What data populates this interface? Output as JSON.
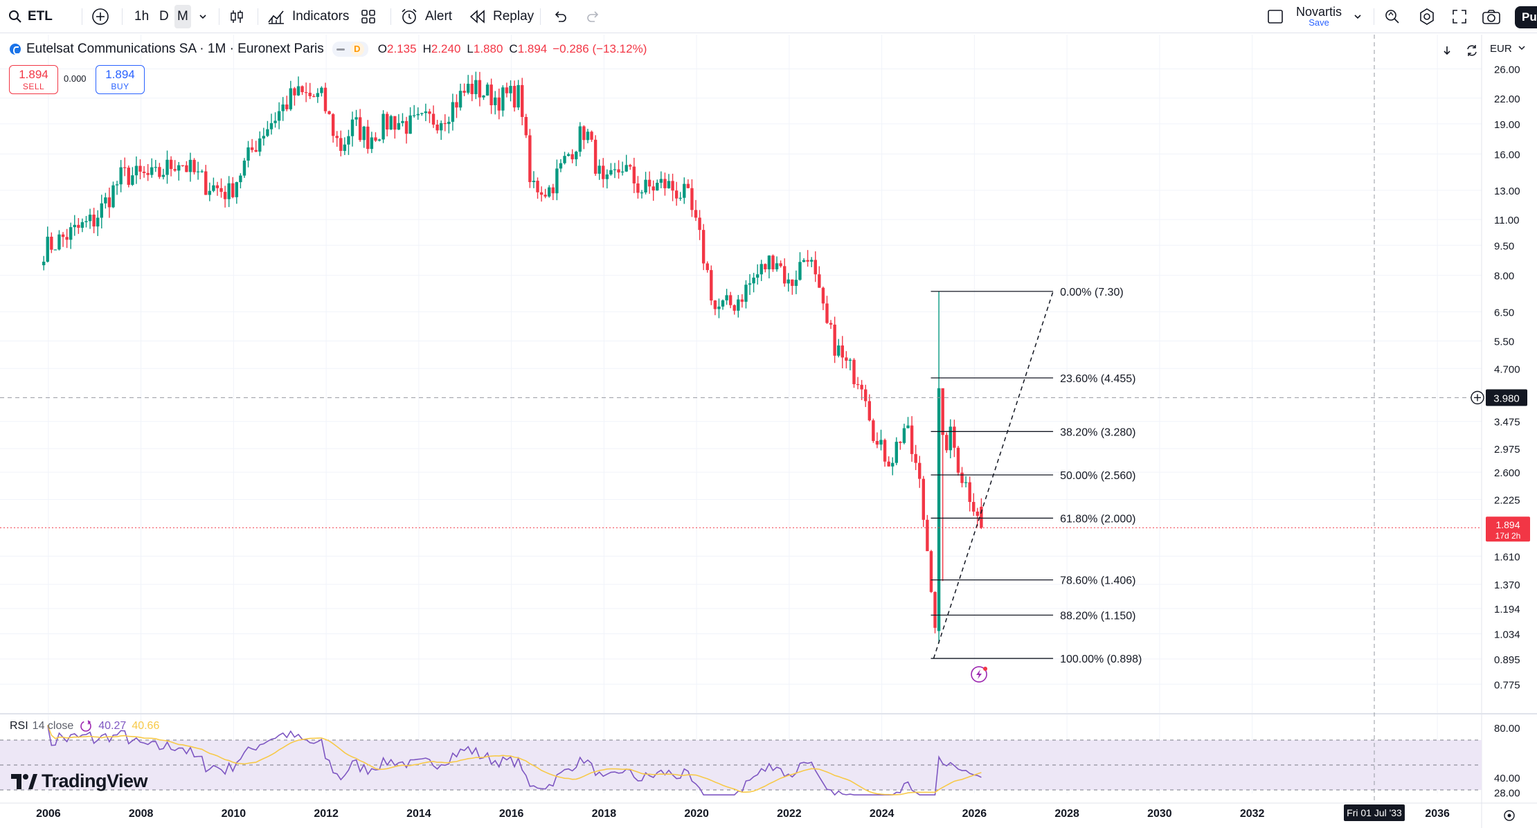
{
  "toolbar": {
    "symbol": "ETL",
    "timeframes": [
      "1h",
      "D",
      "M"
    ],
    "active_timeframe": "M",
    "indicators_label": "Indicators",
    "alert_label": "Alert",
    "replay_label": "Replay",
    "layout_name": "Novartis",
    "layout_save": "Save",
    "publish_label": "Pu"
  },
  "legend": {
    "title": "Eutelsat Communications SA · 1M · Euronext Paris",
    "badge": "D",
    "ohlc": [
      {
        "k": "O",
        "v": "2.135"
      },
      {
        "k": "H",
        "v": "2.240"
      },
      {
        "k": "L",
        "v": "1.880"
      },
      {
        "k": "C",
        "v": "1.894"
      }
    ],
    "change": "−0.286 (−13.12%)"
  },
  "trade": {
    "sell_price": "1.894",
    "sell_label": "SELL",
    "spread": "0.000",
    "buy_price": "1.894",
    "buy_label": "BUY"
  },
  "currency": "EUR",
  "rsi": {
    "name": "RSI",
    "params": "14 close",
    "value": "40.27",
    "ma_value": "40.66",
    "scale_labels": [
      "80.00",
      "40.00",
      "28.00"
    ],
    "levels": [
      70,
      50,
      30
    ]
  },
  "brand": "TradingView",
  "crosshair": {
    "price_label": "3.980",
    "date_label": "Fri 01 Jul '33"
  },
  "last_price": {
    "price": "1.894",
    "countdown": "17d 2h"
  },
  "colors": {
    "up": "#089981",
    "down": "#f23645",
    "rsi_line": "#7e57c2",
    "rsi_ma": "#f7c948",
    "rsi_band": "#ede7f6",
    "fib_line": "#131722"
  },
  "chart_data": {
    "type": "candlestick",
    "symbol": "Eutelsat Communications SA",
    "interval": "1M",
    "exchange": "Euronext Paris",
    "y_scale": "log",
    "x_range": [
      2005.0,
      2037.0
    ],
    "y_range": [
      0.74,
      27.0
    ],
    "x_tick_labels": [
      "2006",
      "2008",
      "2010",
      "2012",
      "2014",
      "2016",
      "2018",
      "2020",
      "2022",
      "2024",
      "2026",
      "2028",
      "2030",
      "2032",
      "2036"
    ],
    "y_tick_labels": [
      "26.00",
      "22.00",
      "19.00",
      "16.00",
      "13.00",
      "11.00",
      "9.50",
      "8.00",
      "6.50",
      "5.50",
      "4.700",
      "3.475",
      "2.975",
      "2.600",
      "2.225",
      "1.610",
      "1.370",
      "1.194",
      "1.034",
      "0.895",
      "0.775"
    ],
    "close_anchors": [
      [
        2005.9,
        9.3
      ],
      [
        2006.5,
        10.2
      ],
      [
        2007.0,
        11.0
      ],
      [
        2007.6,
        14.2
      ],
      [
        2008.3,
        14.0
      ],
      [
        2008.8,
        15.5
      ],
      [
        2009.4,
        13.5
      ],
      [
        2009.9,
        12.8
      ],
      [
        2010.6,
        18.0
      ],
      [
        2011.3,
        22.5
      ],
      [
        2011.9,
        22.0
      ],
      [
        2012.3,
        16.5
      ],
      [
        2012.6,
        19.0
      ],
      [
        2012.9,
        17.5
      ],
      [
        2013.4,
        19.5
      ],
      [
        2013.8,
        18.8
      ],
      [
        2014.5,
        19.8
      ],
      [
        2015.1,
        23.5
      ],
      [
        2015.7,
        22.0
      ],
      [
        2016.2,
        22.5
      ],
      [
        2016.4,
        13.5
      ],
      [
        2016.8,
        13.0
      ],
      [
        2017.3,
        16.5
      ],
      [
        2017.6,
        18.5
      ],
      [
        2018.0,
        13.0
      ],
      [
        2018.4,
        15.0
      ],
      [
        2018.8,
        13.0
      ],
      [
        2019.3,
        13.5
      ],
      [
        2019.8,
        12.5
      ],
      [
        2020.1,
        9.5
      ],
      [
        2020.4,
        6.6
      ],
      [
        2020.8,
        6.8
      ],
      [
        2021.3,
        8.0
      ],
      [
        2021.7,
        9.0
      ],
      [
        2022.0,
        7.5
      ],
      [
        2022.4,
        9.2
      ],
      [
        2022.8,
        6.0
      ],
      [
        2023.2,
        4.8
      ],
      [
        2023.6,
        4.4
      ],
      [
        2023.9,
        3.0
      ],
      [
        2024.2,
        2.8
      ],
      [
        2024.5,
        3.4
      ],
      [
        2024.8,
        2.5
      ],
      [
        2025.1,
        1.3
      ],
      [
        2025.2,
        0.95
      ],
      [
        2025.3,
        3.0
      ],
      [
        2025.5,
        3.2
      ],
      [
        2025.7,
        2.6
      ],
      [
        2025.9,
        2.3
      ],
      [
        2026.05,
        2.135
      ],
      [
        2026.15,
        1.894
      ]
    ],
    "spike_candles": [
      {
        "t": 2025.25,
        "o": 1.05,
        "h": 7.3,
        "l": 0.98,
        "c": 4.2
      }
    ],
    "last_candle": {
      "o": 2.135,
      "h": 2.24,
      "l": 1.88,
      "c": 1.894
    },
    "fibonacci": {
      "start": {
        "x": 2025.12,
        "price": 0.898
      },
      "end": {
        "x": 2027.7,
        "price": 7.3
      },
      "levels": [
        {
          "ratio": "0.00%",
          "price": 7.3
        },
        {
          "ratio": "23.60%",
          "price": 4.455
        },
        {
          "ratio": "38.20%",
          "price": 3.28
        },
        {
          "ratio": "50.00%",
          "price": 2.56
        },
        {
          "ratio": "61.80%",
          "price": 2.0
        },
        {
          "ratio": "78.60%",
          "price": 1.406
        },
        {
          "ratio": "88.20%",
          "price": 1.15
        },
        {
          "ratio": "100.00%",
          "price": 0.898
        }
      ]
    }
  }
}
